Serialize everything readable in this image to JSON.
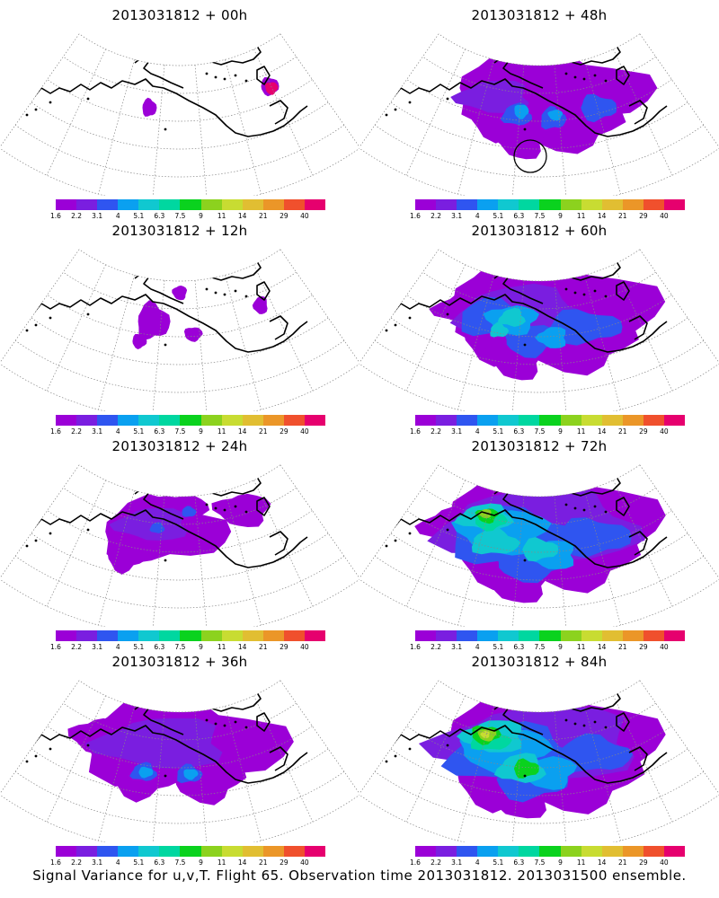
{
  "panels": [
    {
      "title": "2013031812 + 00h",
      "lead_hours": 0
    },
    {
      "title": "2013031812 + 48h",
      "lead_hours": 48
    },
    {
      "title": "2013031812 + 12h",
      "lead_hours": 12
    },
    {
      "title": "2013031812 + 60h",
      "lead_hours": 60
    },
    {
      "title": "2013031812 + 24h",
      "lead_hours": 24
    },
    {
      "title": "2013031812 + 72h",
      "lead_hours": 72
    },
    {
      "title": "2013031812 + 36h",
      "lead_hours": 36
    },
    {
      "title": "2013031812 + 84h",
      "lead_hours": 84
    }
  ],
  "colorbar": {
    "labels": [
      "1.6",
      "2.2",
      "3.1",
      "4",
      "5.1",
      "6.3",
      "7.5",
      "9",
      "11",
      "14",
      "21",
      "29",
      "40"
    ],
    "colors": [
      "#9b00d7",
      "#7a1ee0",
      "#2f55f0",
      "#0aa0f0",
      "#10c8d0",
      "#00d7a0",
      "#0ad21e",
      "#8cd21e",
      "#c8dc32",
      "#e1be32",
      "#eb9628",
      "#f0502d",
      "#e6006e"
    ]
  },
  "footer": "Signal Variance for u,v,T. Flight 65. Observation time 2013031812. 2013031500 ensemble."
}
